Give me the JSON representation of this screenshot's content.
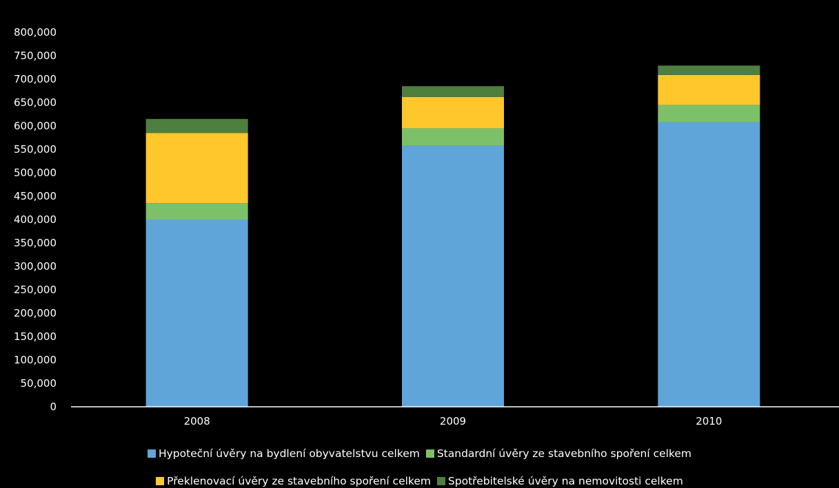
{
  "chart_data": {
    "type": "bar",
    "stacked": true,
    "categories": [
      "2008",
      "2009",
      "2010"
    ],
    "series": [
      {
        "name": "Hypoteční úvěry na bydlení obyvatelstvu celkem",
        "color": "#5fa5d9",
        "values": [
          400000,
          558000,
          608000
        ]
      },
      {
        "name": "Standardní úvěry ze stavebního spoření celkem",
        "color": "#7cc16a",
        "values": [
          35000,
          37000,
          37000
        ]
      },
      {
        "name": "Překlenovací úvěry ze stavebního spoření celkem",
        "color": "#ffc72b",
        "values": [
          150000,
          67000,
          64000
        ]
      },
      {
        "name": "Spotřebitelské úvěry na nemovitosti celkem",
        "color": "#4f7f3f",
        "values": [
          30000,
          23000,
          20000
        ]
      }
    ],
    "ylim": [
      0,
      800000
    ],
    "yticks": [
      "0",
      "50,000",
      "100,000",
      "150,000",
      "200,000",
      "250,000",
      "300,000",
      "350,000",
      "400,000",
      "450,000",
      "500,000",
      "550,000",
      "600,000",
      "650,000",
      "700,000",
      "750,000",
      "800,000"
    ],
    "legend_position": "bottom",
    "grid": false
  }
}
